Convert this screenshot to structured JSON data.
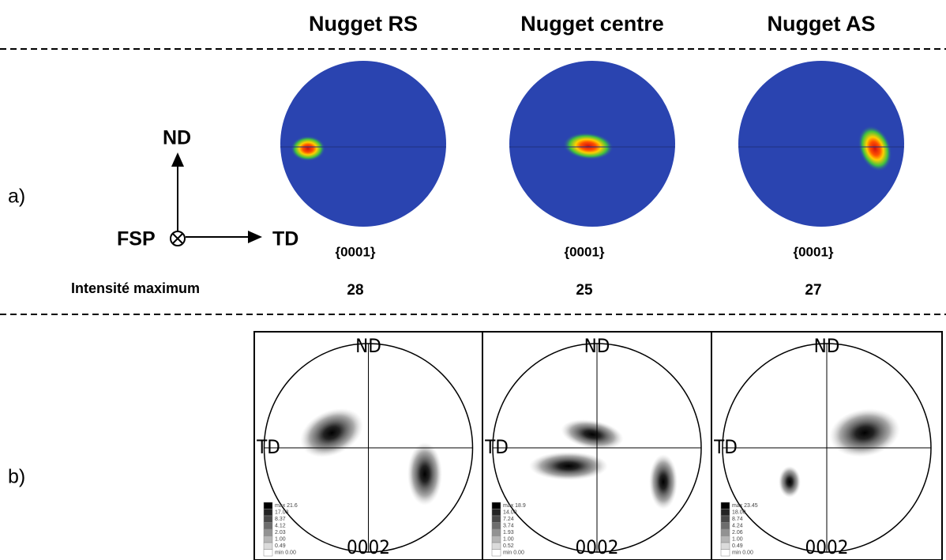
{
  "header": {
    "columns": [
      "Nugget RS",
      "Nugget centre",
      "Nugget AS"
    ]
  },
  "row_a": {
    "label": "a)",
    "axes": {
      "vertical": "ND",
      "horizontal": "TD",
      "normal": "FSP"
    },
    "figures": [
      {
        "plane": "{0001}"
      },
      {
        "plane": "{0001}"
      },
      {
        "plane": "{0001}"
      }
    ],
    "max_intensity": {
      "label": "Intensité maximum",
      "values": [
        28,
        25,
        27
      ]
    }
  },
  "row_b": {
    "label": "b)",
    "figures": [
      {
        "top": "ND",
        "left": "TD",
        "bottom": "0002",
        "legend": [
          "max 21.6",
          "17.03",
          "8.37",
          "4.12",
          "2.03",
          "1.00",
          "0.49",
          "min 0.00"
        ]
      },
      {
        "top": "ND",
        "left": "TD",
        "bottom": "0002",
        "legend": [
          "max 18.9",
          "14.00",
          "7.24",
          "3.74",
          "1.93",
          "1.00",
          "0.52",
          "min 0.00"
        ]
      },
      {
        "top": "ND",
        "left": "TD",
        "bottom": "0002",
        "legend": [
          "max 23.45",
          "18.00",
          "8.74",
          "4.24",
          "2.06",
          "1.00",
          "0.49",
          "min 0.00"
        ]
      }
    ]
  }
}
